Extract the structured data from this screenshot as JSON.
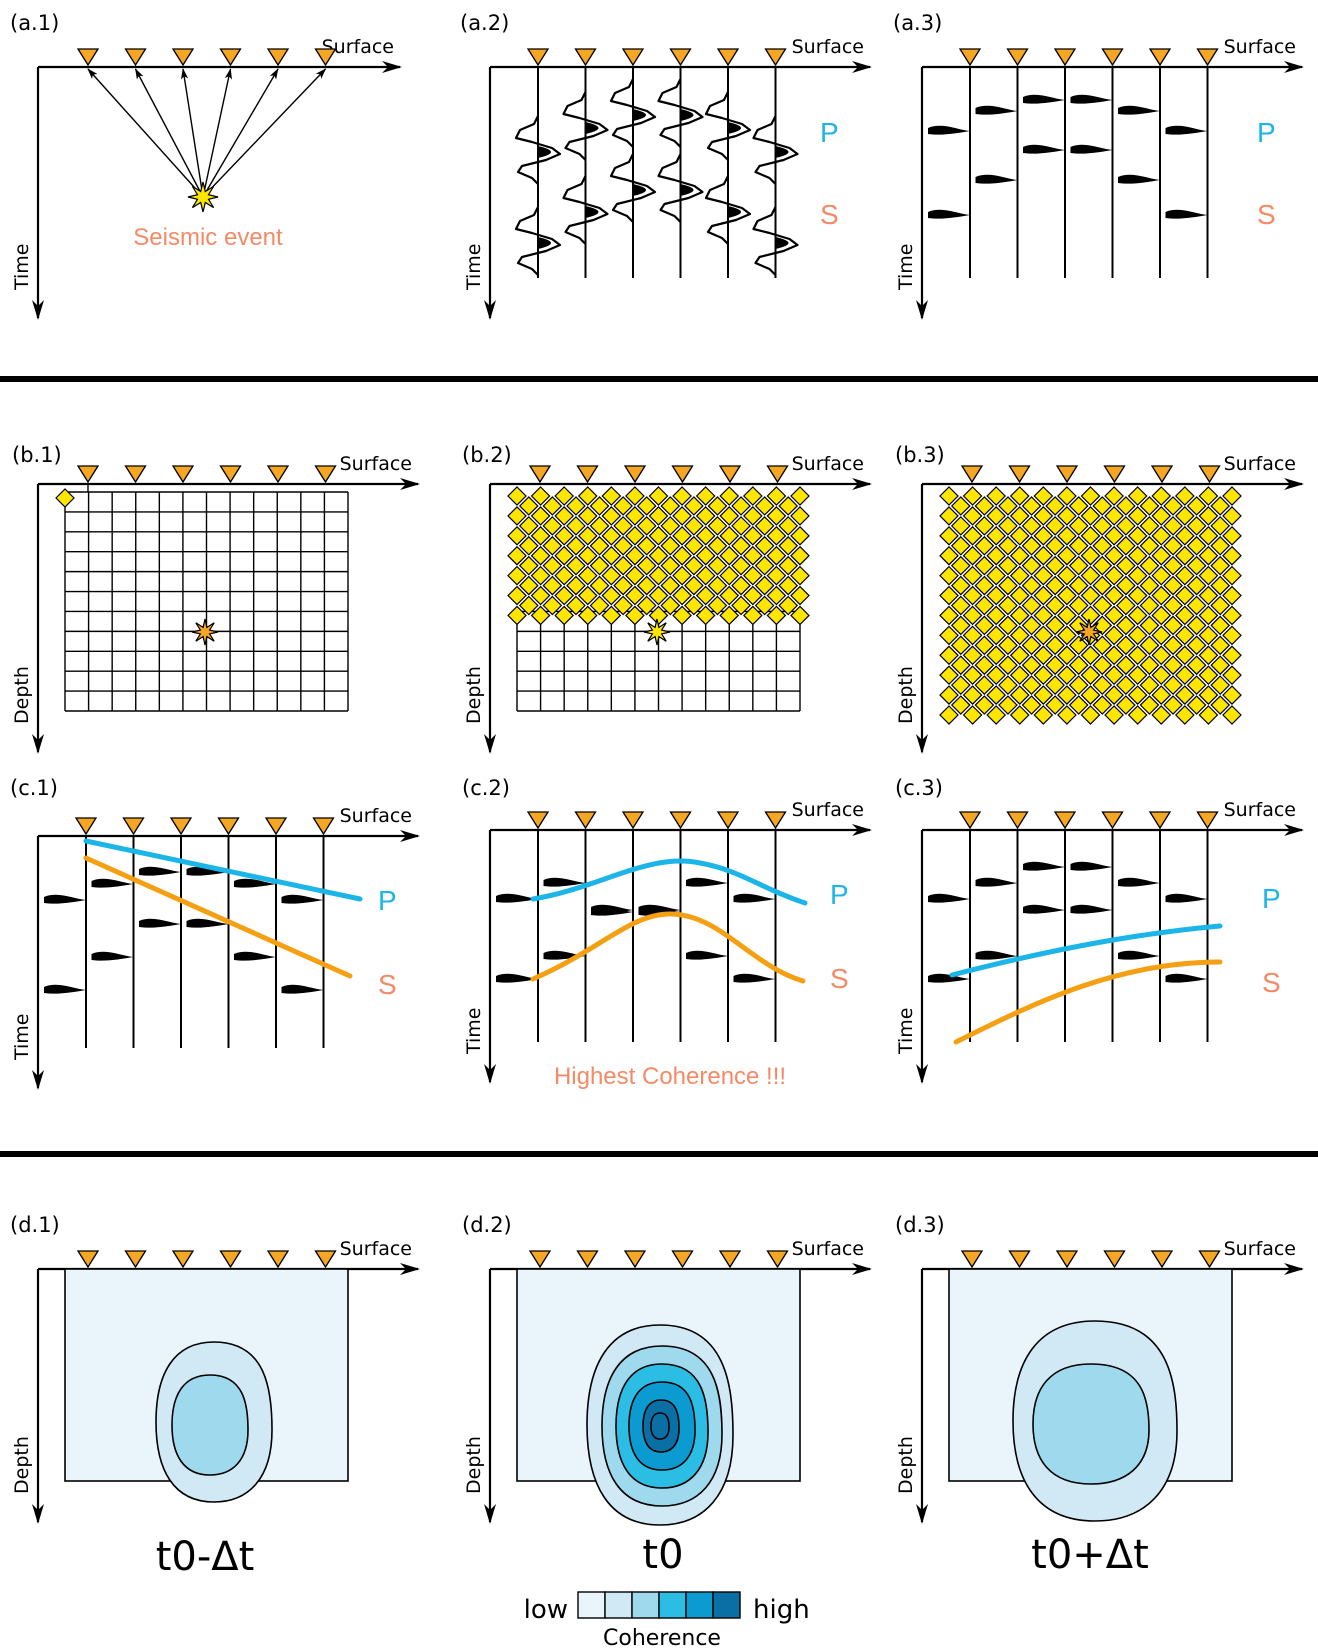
{
  "colors": {
    "receiver": "#f5a623",
    "event": "#ffe600",
    "p_wave": "#1cb5e8",
    "s_wave": "#f48a66",
    "p_curve": "#1cb5e8",
    "s_curve": "#f5a013",
    "note": "#f48a66",
    "coherence_scale": [
      "#e9f4fb",
      "#d0e9f5",
      "#9fd9ee",
      "#2bbde3",
      "#0b9bd0",
      "#0a6fa4"
    ]
  },
  "labels": {
    "surface": "Surface",
    "time": "Time",
    "depth": "Depth",
    "p": "P",
    "s": "S",
    "seismic_event": "Seismic event",
    "highest_coherence": "Highest Coherence !!!"
  },
  "panels": {
    "a1": "(a.1)",
    "a2": "(a.2)",
    "a3": "(a.3)",
    "b1": "(b.1)",
    "b2": "(b.2)",
    "b3": "(b.3)",
    "c1": "(c.1)",
    "c2": "(c.2)",
    "c3": "(c.3)",
    "d1": "(d.1)",
    "d2": "(d.2)",
    "d3": "(d.3)"
  },
  "time_steps": {
    "d1": "t0-Δt",
    "d2": "t0",
    "d3": "t0+Δt"
  },
  "legend": {
    "low": "low",
    "high": "high",
    "title": "Coherence"
  },
  "icons": {
    "receiver": "receiver-triangle-icon",
    "event": "seismic-event-star-icon",
    "grid_node": "grid-node-diamond-icon"
  }
}
